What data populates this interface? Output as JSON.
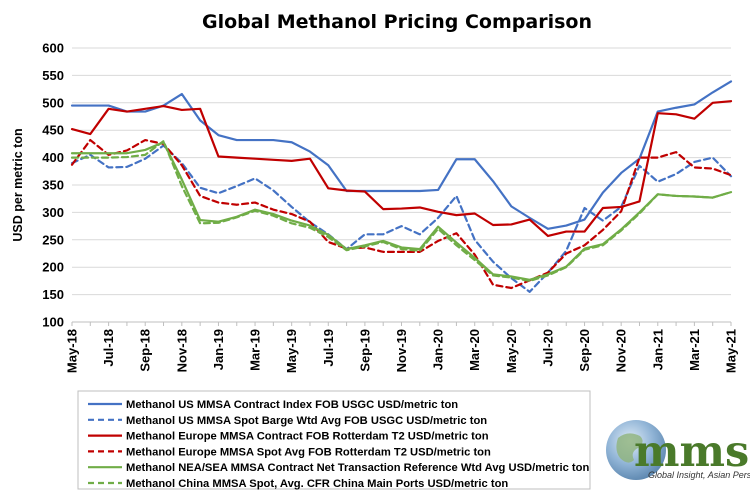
{
  "chart_data": {
    "type": "line",
    "title": "Global Methanol Pricing Comparison",
    "xlabel": "",
    "ylabel": "USD per metric ton",
    "ylim": [
      100,
      600
    ],
    "yticks": [
      100,
      150,
      200,
      250,
      300,
      350,
      400,
      450,
      500,
      550,
      600
    ],
    "grid": true,
    "legend_position": "bottom",
    "x": [
      "May-18",
      "Jun-18",
      "Jul-18",
      "Aug-18",
      "Sep-18",
      "Oct-18",
      "Nov-18",
      "Dec-18",
      "Jan-19",
      "Feb-19",
      "Mar-19",
      "Apr-19",
      "May-19",
      "Jun-19",
      "Jul-19",
      "Aug-19",
      "Sep-19",
      "Oct-19",
      "Nov-19",
      "Dec-19",
      "Jan-20",
      "Feb-20",
      "Mar-20",
      "Apr-20",
      "May-20",
      "Jun-20",
      "Jul-20",
      "Aug-20",
      "Sep-20",
      "Oct-20",
      "Nov-20",
      "Dec-20",
      "Jan-21",
      "Feb-21",
      "Mar-21",
      "Apr-21",
      "May-21"
    ],
    "tick_labels": [
      "May-18",
      "Jul-18",
      "Sep-18",
      "Nov-18",
      "Jan-19",
      "Mar-19",
      "May-19",
      "Jul-19",
      "Sep-19",
      "Nov-19",
      "Jan-20",
      "Mar-20",
      "May-20",
      "Jul-20",
      "Sep-20",
      "Nov-20",
      "Jan-21",
      "Mar-21",
      "May-21"
    ],
    "series": [
      {
        "name": "Methanol US MMSA Contract Index FOB USGC USD/metric ton",
        "color": "#4472c4",
        "dash": false,
        "values": [
          495,
          495,
          495,
          484,
          484,
          495,
          516,
          468,
          441,
          432,
          432,
          432,
          428,
          411,
          386,
          339,
          339,
          339,
          339,
          339,
          341,
          397,
          397,
          357,
          311,
          290,
          270,
          276,
          287,
          336,
          372,
          398,
          484,
          491,
          497,
          519,
          539
        ]
      },
      {
        "name": "Methanol US MMSA Spot Barge Wtd Avg FOB USGC USD/metric ton",
        "color": "#4472c4",
        "dash": true,
        "values": [
          390,
          405,
          382,
          383,
          398,
          422,
          390,
          345,
          335,
          348,
          362,
          340,
          310,
          282,
          260,
          233,
          260,
          260,
          275,
          260,
          290,
          330,
          250,
          210,
          180,
          155,
          190,
          230,
          308,
          285,
          310,
          385,
          356,
          370,
          392,
          400,
          366
        ]
      },
      {
        "name": "Methanol Europe MMSA Contract FOB Rotterdam T2 USD/metric ton",
        "color": "#c00000",
        "dash": false,
        "values": [
          452,
          443,
          489,
          484,
          489,
          494,
          487,
          489,
          402,
          400,
          398,
          396,
          394,
          398,
          344,
          340,
          338,
          306,
          307,
          309,
          301,
          295,
          298,
          277,
          278,
          287,
          257,
          265,
          265,
          308,
          310,
          320,
          481,
          479,
          471,
          500,
          503
        ]
      },
      {
        "name": "Methanol Europe MMSA Spot Avg FOB Rotterdam T2 USD/metric ton",
        "color": "#c00000",
        "dash": true,
        "values": [
          387,
          432,
          405,
          413,
          432,
          425,
          386,
          330,
          318,
          314,
          318,
          305,
          297,
          283,
          246,
          234,
          236,
          228,
          228,
          228,
          248,
          262,
          223,
          168,
          162,
          176,
          190,
          225,
          240,
          268,
          302,
          400,
          400,
          410,
          382,
          380,
          368
        ]
      },
      {
        "name": "Methanol NEA/SEA MMSA Contract Net Transaction Reference Wtd Avg USD/metric ton",
        "color": "#70ad47",
        "dash": false,
        "values": [
          408,
          408,
          408,
          408,
          414,
          428,
          360,
          286,
          283,
          292,
          305,
          297,
          285,
          276,
          259,
          233,
          240,
          248,
          236,
          233,
          274,
          245,
          217,
          187,
          183,
          177,
          187,
          201,
          234,
          242,
          269,
          300,
          333,
          330,
          329,
          327,
          337
        ]
      },
      {
        "name": "Methanol China MMSA Spot, Avg. CFR China Main Ports USD/metric ton",
        "color": "#70ad47",
        "dash": true,
        "values": [
          400,
          400,
          400,
          401,
          405,
          430,
          348,
          280,
          281,
          291,
          303,
          294,
          280,
          272,
          255,
          231,
          238,
          246,
          233,
          230,
          270,
          240,
          213,
          185,
          181,
          175,
          185,
          200,
          232,
          240,
          267,
          298,
          333,
          330,
          329,
          327,
          337
        ]
      }
    ]
  },
  "logo": {
    "text": "mmsa",
    "tagline": "Global Insight, Asian Perspective",
    "colors": {
      "text": "#4a7a2a",
      "globe": "#5b8db8"
    }
  }
}
